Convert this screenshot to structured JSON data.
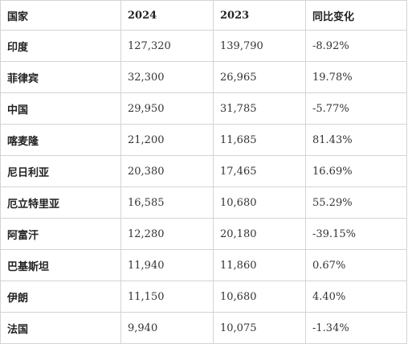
{
  "table": {
    "headers": [
      "国家",
      "2024",
      "2023",
      "同比变化"
    ],
    "rows": [
      [
        "印度",
        "127,320",
        "139,790",
        "-8.92%"
      ],
      [
        "菲律宾",
        "32,300",
        "26,965",
        "19.78%"
      ],
      [
        "中国",
        "29,950",
        "31,785",
        "-5.77%"
      ],
      [
        "喀麦隆",
        "21,200",
        "11,685",
        "81.43%"
      ],
      [
        "尼日利亚",
        "20,380",
        "17,465",
        "16.69%"
      ],
      [
        "厄立特里亚",
        "16,585",
        "10,680",
        "55.29%"
      ],
      [
        "阿富汗",
        "12,280",
        "20,180",
        "-39.15%"
      ],
      [
        "巴基斯坦",
        "11,940",
        "11,860",
        "0.67%"
      ],
      [
        "伊朗",
        "11,150",
        "10,680",
        "4.40%"
      ],
      [
        "法国",
        "9,940",
        "10,075",
        "-1.34%"
      ]
    ]
  }
}
